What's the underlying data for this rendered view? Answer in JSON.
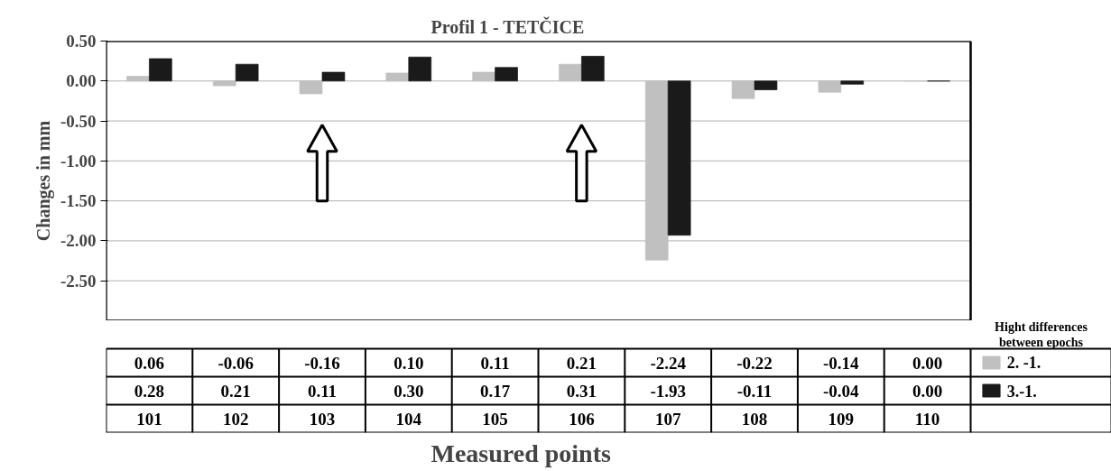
{
  "chart_data": {
    "type": "bar",
    "title": "Profil 1 - TETČICE",
    "xlabel": "Measured points",
    "ylabel": "Changes in mm",
    "legend_title": "Hight differences between epochs",
    "categories": [
      "101",
      "102",
      "103",
      "104",
      "105",
      "106",
      "107",
      "108",
      "109",
      "110"
    ],
    "series": [
      {
        "name": "2. -1.",
        "color": "#c0c0c0",
        "values": [
          0.06,
          -0.06,
          -0.16,
          0.1,
          0.11,
          0.21,
          -2.24,
          -0.22,
          -0.14,
          0.0
        ],
        "value_labels": [
          "0.06",
          "-0.06",
          "-0.16",
          "0.10",
          "0.11",
          "0.21",
          "-2.24",
          "-0.22",
          "-0.14",
          "0.00"
        ]
      },
      {
        "name": "3.-1.",
        "color": "#1a1a1a",
        "values": [
          0.28,
          0.21,
          0.11,
          0.3,
          0.17,
          0.31,
          -1.93,
          -0.11,
          -0.04,
          0.0
        ],
        "value_labels": [
          "0.28",
          "0.21",
          "0.11",
          "0.30",
          "0.17",
          "0.31",
          "-1.93",
          "-0.11",
          "-0.04",
          "0.00"
        ]
      }
    ],
    "ylim": [
      -3.0,
      0.5
    ],
    "yticks": [
      {
        "value": 0.5,
        "label": "0.50"
      },
      {
        "value": 0.0,
        "label": "0.00"
      },
      {
        "value": -0.5,
        "label": "-0.50"
      },
      {
        "value": -1.0,
        "label": "-1.00"
      },
      {
        "value": -1.5,
        "label": "-1.50"
      },
      {
        "value": -2.0,
        "label": "-2.00"
      },
      {
        "value": -2.5,
        "label": "-2.50"
      }
    ],
    "grid": "y",
    "legend": "right"
  }
}
